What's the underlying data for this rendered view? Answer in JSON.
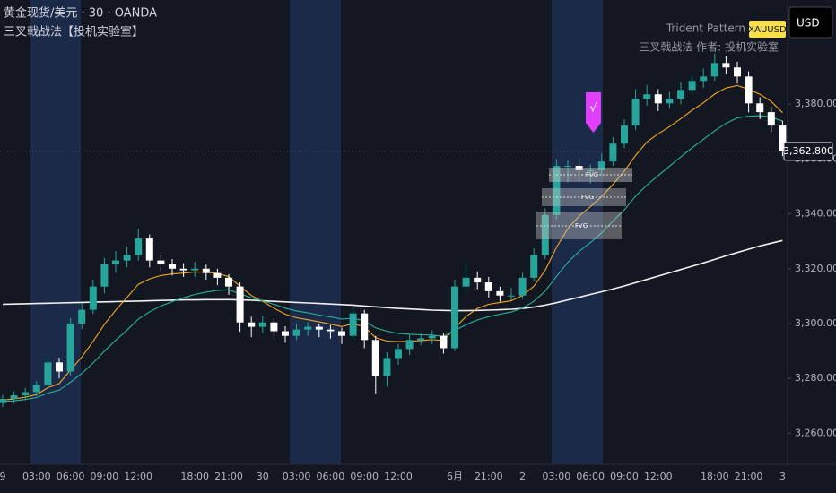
{
  "chart_data": {
    "type": "candlestick",
    "title": "黄金现货/美元 · 30 · OANDA",
    "subtitle": "三叉戟战法【投机实验室】",
    "indicator_title": "Trident Pattern",
    "symbol_badge": "XAUUSD",
    "indicator_subtitle": "三叉戟战法 作者: 投机实验室",
    "currency": "USD",
    "signal_label": "√",
    "fvg_labels": [
      "FVG",
      "FVG",
      "FVG"
    ],
    "last_price": {
      "value": 3362.8,
      "label": "3,362.800"
    },
    "up_color": "#26a69a",
    "down_color": "#ffffff",
    "grid": false,
    "ylim": [
      3248,
      3418
    ],
    "yticks": [
      {
        "value": 3260,
        "label": "3,260.000"
      },
      {
        "value": 3280,
        "label": "3,280.000"
      },
      {
        "value": 3300,
        "label": "3,300.000"
      },
      {
        "value": 3320,
        "label": "3,320.000"
      },
      {
        "value": 3340,
        "label": "3,340.000"
      },
      {
        "value": 3360,
        "label": "3,360.000"
      },
      {
        "value": 3380,
        "label": "3,380.000"
      }
    ],
    "x": [
      "9",
      null,
      null,
      "03:00",
      null,
      null,
      "06:00",
      null,
      null,
      "09:00",
      null,
      null,
      "12:00",
      null,
      null,
      null,
      null,
      "18:00",
      null,
      null,
      "21:00",
      null,
      null,
      "30",
      null,
      null,
      "03:00",
      null,
      null,
      "06:00",
      null,
      null,
      "09:00",
      null,
      null,
      "12:00",
      null,
      null,
      null,
      null,
      "6月",
      null,
      null,
      "21:00",
      null,
      null,
      "2",
      null,
      null,
      "03:00",
      null,
      null,
      "06:00",
      null,
      null,
      "09:00",
      null,
      null,
      "12:00",
      null,
      null,
      null,
      null,
      "18:00",
      null,
      null,
      "21:00",
      null,
      null,
      "3"
    ],
    "open": [
      3271.0,
      3272.5,
      3273.8,
      3275.0,
      3277.6,
      3285.8,
      3282.5,
      3300.0,
      3305.0,
      3313.5,
      3321.6,
      3323.0,
      3325.0,
      3331.0,
      3323.0,
      3321.6,
      3320.0,
      3319.4,
      3320.0,
      3318.4,
      3316.7,
      3313.5,
      3300.4,
      3298.8,
      3300.4,
      3297.2,
      3295.5,
      3297.8,
      3298.8,
      3297.8,
      3297.2,
      3295.5,
      3303.7,
      3294.0,
      3280.9,
      3287.4,
      3290.7,
      3294.0,
      3294.6,
      3295.5,
      3291.0,
      3313.5,
      3316.7,
      3315.0,
      3311.8,
      3310.2,
      3310.2,
      3316.7,
      3325.0,
      3339.6,
      3357.5,
      3357.5,
      3355.9,
      3355.9,
      3359.1,
      3365.6,
      3372.2,
      3382.0,
      3383.6,
      3380.3,
      3382.0,
      3385.2,
      3388.5,
      3390.1,
      3395.0,
      3393.4,
      3390.1,
      3380.3,
      3377.1,
      3372.2
    ],
    "high": [
      3274.0,
      3275.2,
      3276.5,
      3279.0,
      3288.0,
      3287.5,
      3302.0,
      3307.5,
      3316.0,
      3324.0,
      3326.5,
      3328.0,
      3334.6,
      3332.5,
      3325.0,
      3323.5,
      3322.0,
      3322.5,
      3321.5,
      3320.0,
      3318.0,
      3315.0,
      3302.5,
      3303.0,
      3302.0,
      3299.0,
      3300.0,
      3300.5,
      3300.0,
      3299.5,
      3298.5,
      3306.0,
      3305.0,
      3295.5,
      3289.5,
      3292.5,
      3296.0,
      3296.5,
      3297.5,
      3296.5,
      3316.0,
      3322.0,
      3319.0,
      3317.0,
      3313.5,
      3313.0,
      3318.5,
      3327.5,
      3342.0,
      3360.0,
      3359.5,
      3360.5,
      3358.0,
      3362.0,
      3368.0,
      3374.5,
      3385.5,
      3387.0,
      3385.5,
      3384.5,
      3388.0,
      3391.0,
      3393.0,
      3398.5,
      3397.5,
      3395.5,
      3392.0,
      3382.5,
      3379.0,
      3374.0
    ],
    "low": [
      3269.5,
      3270.8,
      3272.0,
      3273.5,
      3276.5,
      3280.0,
      3281.0,
      3298.0,
      3303.5,
      3311.0,
      3318.5,
      3320.5,
      3323.0,
      3320.5,
      3319.0,
      3317.5,
      3317.0,
      3317.0,
      3316.0,
      3314.0,
      3310.5,
      3297.0,
      3295.0,
      3296.5,
      3294.5,
      3293.0,
      3294.0,
      3295.5,
      3295.0,
      3294.5,
      3292.5,
      3294.0,
      3291.0,
      3274.5,
      3277.0,
      3285.0,
      3288.5,
      3292.0,
      3292.5,
      3289.0,
      3290.0,
      3311.0,
      3312.5,
      3309.5,
      3308.0,
      3308.5,
      3309.0,
      3315.5,
      3323.5,
      3338.0,
      3351.5,
      3352.0,
      3351.0,
      3354.0,
      3357.5,
      3364.0,
      3370.5,
      3379.5,
      3377.5,
      3378.5,
      3380.0,
      3383.5,
      3386.0,
      3388.5,
      3391.0,
      3387.5,
      3377.0,
      3374.5,
      3370.0,
      3361.0
    ],
    "close": [
      3272.5,
      3273.8,
      3275.0,
      3277.6,
      3285.8,
      3282.5,
      3300.0,
      3305.0,
      3313.5,
      3321.6,
      3323.0,
      3325.0,
      3331.0,
      3323.0,
      3321.6,
      3320.0,
      3319.4,
      3320.0,
      3318.4,
      3316.7,
      3313.5,
      3300.4,
      3298.8,
      3300.4,
      3297.2,
      3295.5,
      3297.8,
      3298.8,
      3297.8,
      3297.2,
      3295.5,
      3303.7,
      3294.0,
      3280.9,
      3287.4,
      3290.7,
      3294.0,
      3294.6,
      3295.5,
      3291.0,
      3313.5,
      3316.7,
      3315.0,
      3311.8,
      3310.2,
      3310.2,
      3316.7,
      3325.0,
      3339.6,
      3357.5,
      3357.5,
      3355.9,
      3355.9,
      3359.1,
      3365.6,
      3372.2,
      3382.0,
      3383.6,
      3380.3,
      3382.0,
      3385.2,
      3388.5,
      3390.1,
      3395.0,
      3393.4,
      3390.1,
      3380.3,
      3377.1,
      3372.2,
      3362.8
    ],
    "lines": [
      {
        "color": "#f0f0f0",
        "values": [
          3307.0,
          3307.1,
          3307.2,
          3307.3,
          3307.4,
          3307.5,
          3307.6,
          3307.7,
          3307.8,
          3307.9,
          3308.0,
          3308.1,
          3308.2,
          3308.3,
          3308.4,
          3308.5,
          3308.6,
          3308.6,
          3308.7,
          3308.7,
          3308.7,
          3308.6,
          3308.5,
          3308.3,
          3308.1,
          3307.9,
          3307.7,
          3307.5,
          3307.3,
          3307.1,
          3306.9,
          3306.7,
          3306.4,
          3306.1,
          3305.8,
          3305.5,
          3305.3,
          3305.1,
          3304.9,
          3304.8,
          3304.7,
          3304.7,
          3304.8,
          3304.9,
          3305.0,
          3305.2,
          3305.5,
          3306.0,
          3306.7,
          3307.6,
          3308.6,
          3309.6,
          3310.6,
          3311.6,
          3312.6,
          3313.7,
          3314.9,
          3316.1,
          3317.3,
          3318.5,
          3319.7,
          3320.9,
          3322.1,
          3323.4,
          3324.7,
          3325.9,
          3327.1,
          3328.3,
          3329.3,
          3330.3
        ]
      },
      {
        "color": "#f5a623",
        "values": [
          3272.1,
          3272.5,
          3273.1,
          3274.1,
          3276.6,
          3278.1,
          3283.0,
          3287.8,
          3293.5,
          3299.7,
          3304.9,
          3309.5,
          3314.3,
          3316.3,
          3317.5,
          3318.1,
          3318.4,
          3318.8,
          3318.7,
          3318.3,
          3317.1,
          3313.6,
          3310.2,
          3308.1,
          3305.6,
          3303.4,
          3302.1,
          3301.4,
          3300.6,
          3299.8,
          3298.9,
          3299.9,
          3298.8,
          3294.8,
          3293.6,
          3293.4,
          3293.5,
          3293.8,
          3294.1,
          3293.8,
          3298.3,
          3302.6,
          3305.5,
          3307.0,
          3307.7,
          3308.3,
          3310.2,
          3313.6,
          3319.4,
          3327.8,
          3334.6,
          3339.2,
          3342.6,
          3346.3,
          3350.8,
          3355.6,
          3361.3,
          3366.2,
          3369.2,
          3371.8,
          3374.7,
          3377.8,
          3380.5,
          3383.7,
          3385.9,
          3386.8,
          3385.4,
          3383.6,
          3381.0,
          3376.9
        ]
      },
      {
        "color": "#2bb39b",
        "values": [
          3271.5,
          3271.8,
          3272.3,
          3273.0,
          3274.6,
          3275.7,
          3278.6,
          3281.8,
          3285.6,
          3289.9,
          3293.9,
          3297.6,
          3301.6,
          3304.3,
          3306.4,
          3308.0,
          3309.4,
          3310.6,
          3311.5,
          3312.1,
          3312.3,
          3310.8,
          3309.4,
          3308.3,
          3307.0,
          3305.6,
          3304.6,
          3303.9,
          3303.1,
          3302.4,
          3301.6,
          3301.9,
          3301.0,
          3298.4,
          3297.2,
          3296.4,
          3296.1,
          3295.9,
          3295.8,
          3295.3,
          3297.5,
          3299.6,
          3301.3,
          3302.5,
          3303.4,
          3304.2,
          3305.6,
          3308.1,
          3311.8,
          3317.2,
          3322.3,
          3326.3,
          3329.5,
          3333.1,
          3337.4,
          3341.4,
          3346.5,
          3350.5,
          3354.0,
          3357.4,
          3360.8,
          3364.1,
          3367.2,
          3370.3,
          3373.0,
          3375.0,
          3375.6,
          3375.8,
          3375.3,
          3373.8
        ]
      }
    ]
  }
}
